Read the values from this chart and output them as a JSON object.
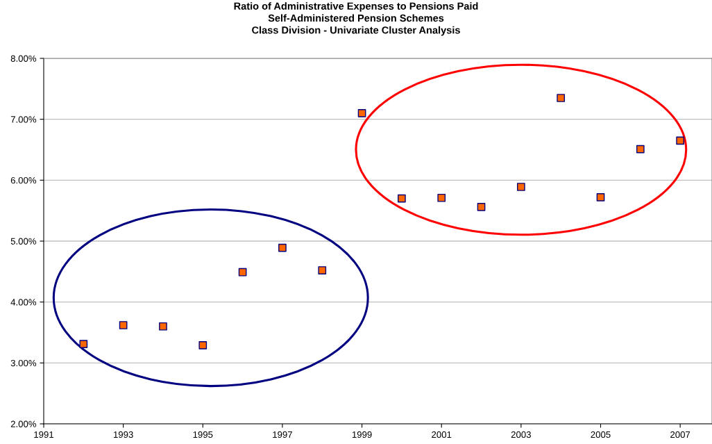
{
  "chart_data": {
    "type": "scatter",
    "title": "Ratio of Administrative Expenses to Pensions Paid\nSelf-Administered Pension Schemes\nClass Division - Univariate Cluster Analysis",
    "x": [
      1992,
      1993,
      1994,
      1995,
      1996,
      1997,
      1998,
      1999,
      2000,
      2001,
      2002,
      2003,
      2004,
      2005,
      2006,
      2007
    ],
    "series": [
      {
        "color": "#ff6600",
        "values": [
          3.31,
          3.62,
          3.6,
          3.29,
          4.49,
          4.89,
          4.52,
          7.1,
          5.7,
          5.71,
          5.56,
          5.89,
          7.35,
          5.72,
          6.51,
          6.65
        ]
      }
    ],
    "xlim": [
      1991,
      2007.8
    ],
    "xticks": [
      1991,
      1993,
      1995,
      1997,
      1999,
      2001,
      2003,
      2005,
      2007
    ],
    "ylim": [
      2,
      8
    ],
    "yticks": [
      {
        "value": 2,
        "label": "2.00%"
      },
      {
        "value": 3,
        "label": "3.00%"
      },
      {
        "value": 4,
        "label": "4.00%"
      },
      {
        "value": 5,
        "label": "5.00%"
      },
      {
        "value": 6,
        "label": "6.00%"
      },
      {
        "value": 7,
        "label": "7.00%"
      },
      {
        "value": 8,
        "label": "8.00%"
      }
    ],
    "grid": "y",
    "marker": "square"
  }
}
